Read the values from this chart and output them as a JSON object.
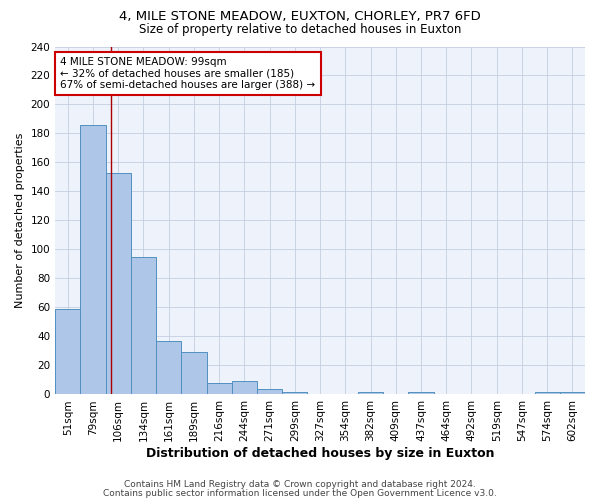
{
  "title1": "4, MILE STONE MEADOW, EUXTON, CHORLEY, PR7 6FD",
  "title2": "Size of property relative to detached houses in Euxton",
  "xlabel": "Distribution of detached houses by size in Euxton",
  "ylabel": "Number of detached properties",
  "categories": [
    "51sqm",
    "79sqm",
    "106sqm",
    "134sqm",
    "161sqm",
    "189sqm",
    "216sqm",
    "244sqm",
    "271sqm",
    "299sqm",
    "327sqm",
    "354sqm",
    "382sqm",
    "409sqm",
    "437sqm",
    "464sqm",
    "492sqm",
    "519sqm",
    "547sqm",
    "574sqm",
    "602sqm"
  ],
  "values": [
    59,
    186,
    153,
    95,
    37,
    29,
    8,
    9,
    4,
    2,
    0,
    0,
    2,
    0,
    2,
    0,
    0,
    0,
    0,
    2,
    2
  ],
  "bar_color": "#aec6e8",
  "bar_edge_color": "#5090c0",
  "ylim": [
    0,
    240
  ],
  "yticks": [
    0,
    20,
    40,
    60,
    80,
    100,
    120,
    140,
    160,
    180,
    200,
    220,
    240
  ],
  "red_line_x": 1.72,
  "annotation_text": "4 MILE STONE MEADOW: 99sqm\n← 32% of detached houses are smaller (185)\n67% of semi-detached houses are larger (388) →",
  "annotation_box_color": "#ffffff",
  "annotation_box_edge_color": "#cc0000",
  "footer1": "Contains HM Land Registry data © Crown copyright and database right 2024.",
  "footer2": "Contains public sector information licensed under the Open Government Licence v3.0.",
  "background_color": "#eef2fa",
  "grid_color": "#c5cfe0",
  "title1_fontsize": 9.5,
  "title2_fontsize": 8.5,
  "xlabel_fontsize": 9,
  "ylabel_fontsize": 8,
  "tick_fontsize": 7.5,
  "annotation_fontsize": 7.5,
  "footer_fontsize": 6.5
}
